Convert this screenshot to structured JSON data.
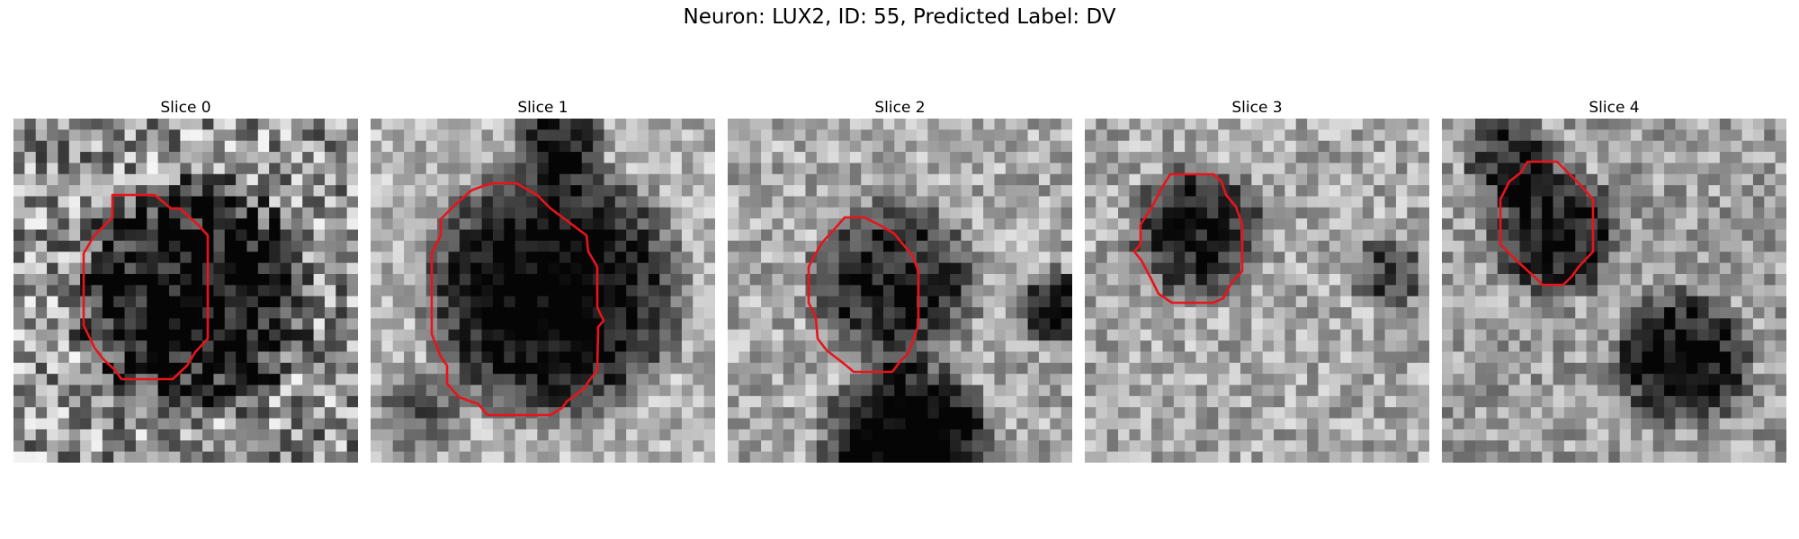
{
  "figure": {
    "title": "Neuron: LUX2, ID: 55, Predicted Label: DV"
  },
  "panels": [
    {
      "title": "Slice 0"
    },
    {
      "title": "Slice 1"
    },
    {
      "title": "Slice 2"
    },
    {
      "title": "Slice 3"
    },
    {
      "title": "Slice 4"
    }
  ],
  "colors": {
    "contour": "#e8141b",
    "background": "#ffffff"
  }
}
